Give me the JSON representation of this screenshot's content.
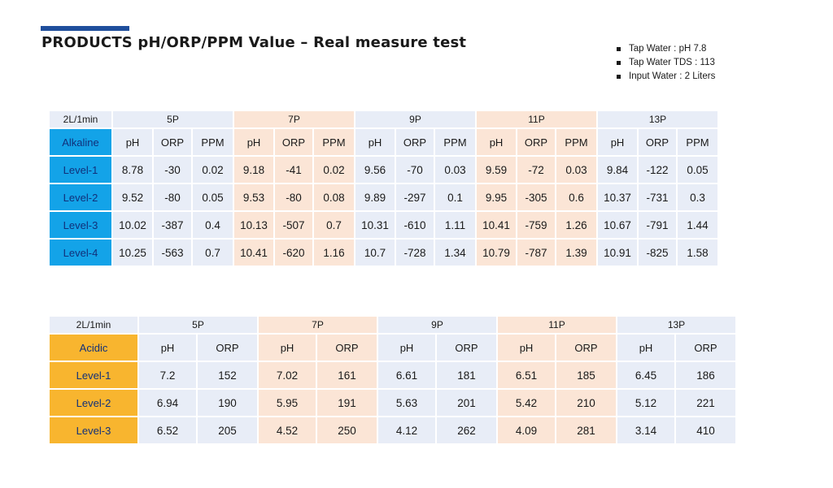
{
  "page": {
    "title": "PRODUCTS pH/ORP/PPM Value – Real measure test",
    "notes": [
      "Tap Water : pH 7.8",
      "Tap Water TDS : 113",
      "Input Water : 2 Liters"
    ]
  },
  "colors": {
    "accent_bar": "#1f4e9c",
    "alkaline_label": "#13a3e8",
    "acidic_label": "#f8b52f",
    "column_blue": "#e8edf7",
    "column_peach": "#fbe5d6"
  },
  "alkaline_table": {
    "corner": "2L/1min",
    "type_label": "Alkaline",
    "models": [
      "5P",
      "7P",
      "9P",
      "11P",
      "13P"
    ],
    "columns": [
      "pH",
      "ORP",
      "PPM"
    ],
    "rows": [
      {
        "level": "Level-1",
        "values": [
          "8.78",
          "-30",
          "0.02",
          "9.18",
          "-41",
          "0.02",
          "9.56",
          "-70",
          "0.03",
          "9.59",
          "-72",
          "0.03",
          "9.84",
          "-122",
          "0.05"
        ]
      },
      {
        "level": "Level-2",
        "values": [
          "9.52",
          "-80",
          "0.05",
          "9.53",
          "-80",
          "0.08",
          "9.89",
          "-297",
          "0.1",
          "9.95",
          "-305",
          "0.6",
          "10.37",
          "-731",
          "0.3"
        ]
      },
      {
        "level": "Level-3",
        "values": [
          "10.02",
          "-387",
          "0.4",
          "10.13",
          "-507",
          "0.7",
          "10.31",
          "-610",
          "1.11",
          "10.41",
          "-759",
          "1.26",
          "10.67",
          "-791",
          "1.44"
        ]
      },
      {
        "level": "Level-4",
        "values": [
          "10.25",
          "-563",
          "0.7",
          "10.41",
          "-620",
          "1.16",
          "10.7",
          "-728",
          "1.34",
          "10.79",
          "-787",
          "1.39",
          "10.91",
          "-825",
          "1.58"
        ]
      }
    ]
  },
  "acidic_table": {
    "corner": "2L/1min",
    "type_label": "Acidic",
    "models": [
      "5P",
      "7P",
      "9P",
      "11P",
      "13P"
    ],
    "columns": [
      "pH",
      "ORP"
    ],
    "rows": [
      {
        "level": "Level-1",
        "values": [
          "7.2",
          "152",
          "7.02",
          "161",
          "6.61",
          "181",
          "6.51",
          "185",
          "6.45",
          "186"
        ]
      },
      {
        "level": "Level-2",
        "values": [
          "6.94",
          "190",
          "5.95",
          "191",
          "5.63",
          "201",
          "5.42",
          "210",
          "5.12",
          "221"
        ]
      },
      {
        "level": "Level-3",
        "values": [
          "6.52",
          "205",
          "4.52",
          "250",
          "4.12",
          "262",
          "4.09",
          "281",
          "3.14",
          "410"
        ]
      }
    ]
  }
}
